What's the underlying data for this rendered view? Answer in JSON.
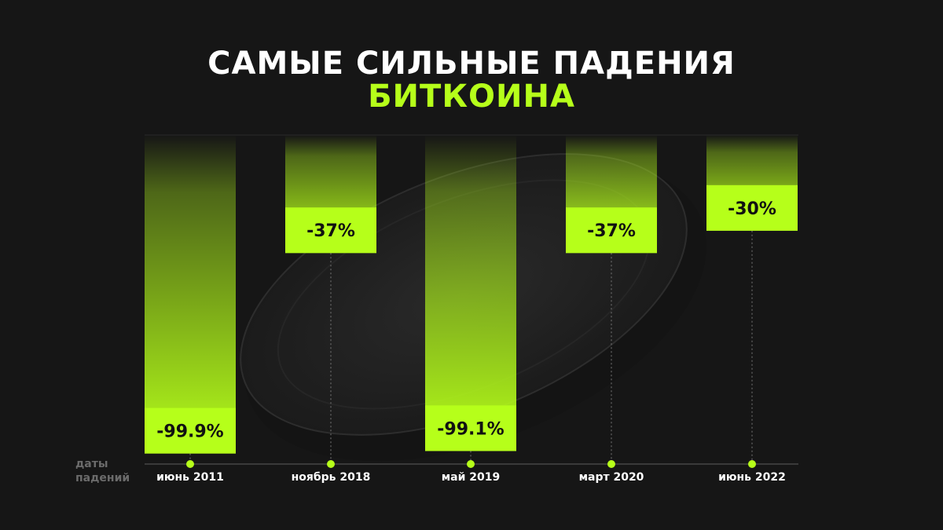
{
  "title": {
    "line1": "САМЫЕ СИЛЬНЫЕ ПАДЕНИЯ",
    "line2": "БИТКОИНА"
  },
  "colors": {
    "accent": "#b6ff1a",
    "background": "#161616",
    "label_text": "#111111",
    "axis_caption": "#6b6b6b"
  },
  "axis_caption": [
    "даты",
    "падений"
  ],
  "chart_data": {
    "type": "bar",
    "orientation": "downward",
    "categories": [
      "июнь 2011",
      "ноябрь 2018",
      "май 2019",
      "март 2020",
      "июнь 2022"
    ],
    "values": [
      -99.9,
      -37,
      -99.1,
      -37,
      -30
    ],
    "value_labels": [
      "-99.9%",
      "-37%",
      "-99.1%",
      "-37%",
      "-30%"
    ],
    "ylim": [
      -100,
      0
    ],
    "legend": "none"
  }
}
